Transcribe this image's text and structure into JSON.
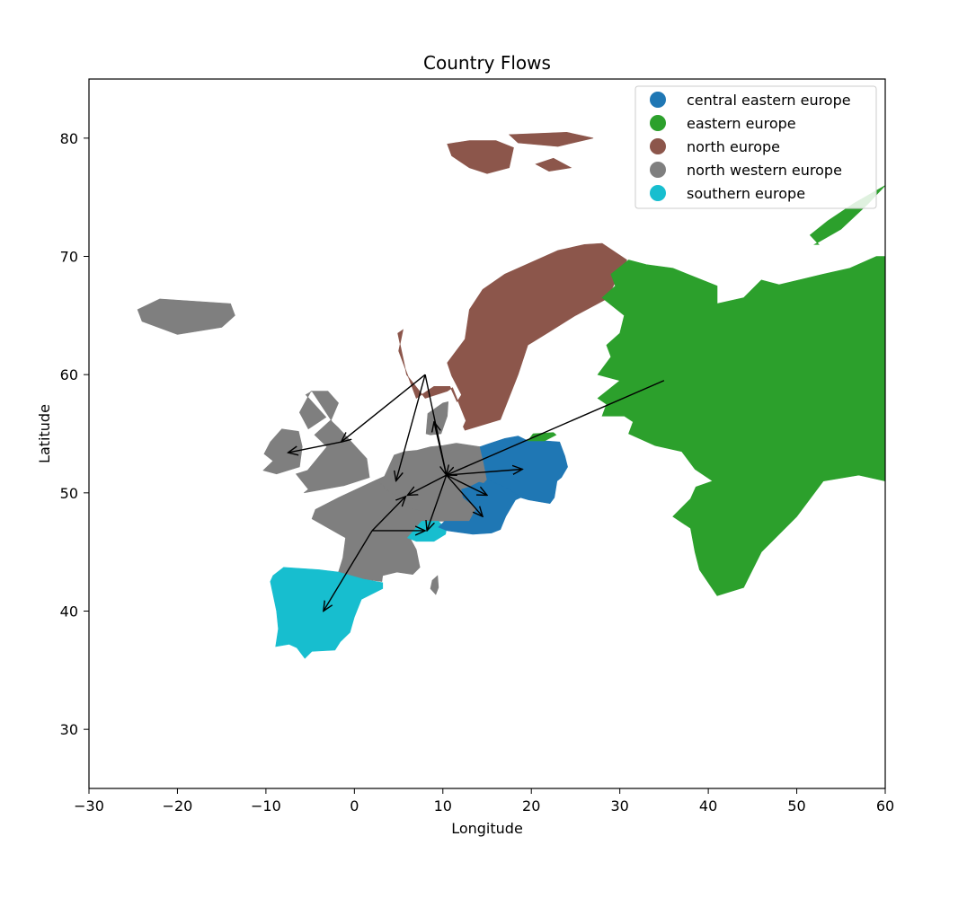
{
  "chart_data": {
    "type": "map",
    "title": "Country Flows",
    "xlabel": "Longitude",
    "ylabel": "Latitude",
    "xlim": [
      -30,
      60
    ],
    "ylim": [
      25,
      85
    ],
    "xticks": [
      -30,
      -20,
      -10,
      0,
      10,
      20,
      30,
      40,
      50,
      60
    ],
    "xtick_labels": [
      "−30",
      "−20",
      "−10",
      "0",
      "10",
      "20",
      "30",
      "40",
      "50",
      "60"
    ],
    "yticks": [
      30,
      40,
      50,
      60,
      70,
      80
    ],
    "ytick_labels": [
      "30",
      "40",
      "50",
      "60",
      "70",
      "80"
    ],
    "grid": false,
    "legend": {
      "placement": "upper right",
      "entries": [
        {
          "label": "central eastern europe",
          "color": "#1f77b4"
        },
        {
          "label": "eastern europe",
          "color": "#2ca02c"
        },
        {
          "label": "north europe",
          "color": "#8c564b"
        },
        {
          "label": "north western europe",
          "color": "#7f7f7f"
        },
        {
          "label": "southern europe",
          "color": "#17becf"
        }
      ]
    },
    "regions": [
      {
        "name": "Iceland",
        "group": "north western europe",
        "color": "#7f7f7f",
        "lon": [
          -24.5,
          -22,
          -18,
          -14,
          -13.5,
          -15,
          -20,
          -24
        ],
        "lat": [
          65.5,
          66.4,
          66.2,
          66.0,
          65.0,
          64.0,
          63.4,
          64.5
        ]
      },
      {
        "name": "Ireland",
        "group": "north western europe",
        "color": "#7f7f7f",
        "lon": [
          -10.3,
          -8.8,
          -6.2,
          -5.9,
          -6.3,
          -8.2,
          -9.5,
          -10.2,
          -9.2
        ],
        "lat": [
          51.9,
          51.6,
          52.2,
          53.9,
          55.2,
          55.4,
          54.3,
          53.3,
          52.7
        ]
      },
      {
        "name": "Great Britain",
        "group": "north western europe",
        "color": "#7f7f7f",
        "lon": [
          -5.7,
          -1.2,
          1.7,
          1.4,
          -1.8,
          -2.5,
          -4.8,
          -5.5,
          -3.2,
          -5.2,
          -6.2,
          -4.9,
          -3.0,
          -1.8,
          -2.6,
          -4.5,
          -3.1,
          -5.3,
          -6.6,
          -5.2
        ],
        "lat": [
          50.0,
          50.6,
          51.3,
          52.9,
          55.5,
          56.0,
          58.6,
          58.3,
          56.4,
          55.4,
          56.8,
          58.6,
          58.6,
          57.6,
          56.2,
          54.9,
          53.9,
          51.9,
          51.6,
          50.3
        ]
      },
      {
        "name": "Benelux-Germany",
        "group": "north western europe",
        "color": "#7f7f7f",
        "lon": [
          2.5,
          3.4,
          4.5,
          5.7,
          7.1,
          8.6,
          10.0,
          11.5,
          14.2,
          15.0,
          14.6,
          14.1,
          13.0,
          12.3,
          13.8,
          13.0,
          10.2,
          7.6,
          6.2,
          5.9,
          4.0
        ],
        "lat": [
          51.1,
          51.4,
          53.2,
          53.5,
          53.6,
          53.9,
          54.0,
          54.2,
          53.9,
          51.1,
          50.8,
          50.9,
          50.5,
          49.6,
          48.7,
          47.6,
          47.6,
          47.6,
          48.7,
          49.5,
          50.0
        ]
      },
      {
        "name": "Denmark",
        "group": "north western europe",
        "color": "#7f7f7f",
        "lon": [
          8.1,
          8.3,
          10.0,
          10.6,
          10.5,
          9.8,
          8.6
        ],
        "lat": [
          55.0,
          56.7,
          57.6,
          57.7,
          56.5,
          55.0,
          54.9
        ]
      },
      {
        "name": "France",
        "group": "north western europe",
        "color": "#7f7f7f",
        "lon": [
          -1.8,
          2.5,
          4.0,
          5.9,
          6.2,
          7.6,
          7.6,
          6.2,
          7.0,
          7.4,
          6.6,
          4.8,
          3.2,
          3.1,
          1.0,
          -1.8,
          -1.3,
          -1.0,
          -4.8,
          -4.4
        ],
        "lat": [
          49.6,
          51.1,
          50.0,
          49.5,
          48.7,
          48.5,
          47.6,
          46.3,
          45.2,
          43.7,
          43.1,
          43.3,
          43.0,
          42.5,
          42.7,
          43.3,
          44.5,
          46.2,
          47.8,
          48.6
        ]
      },
      {
        "name": "Corsica",
        "group": "north western europe",
        "color": "#7f7f7f",
        "lon": [
          9.4,
          9.5,
          9.2,
          8.6,
          8.8
        ],
        "lat": [
          43.0,
          42.0,
          41.4,
          41.9,
          42.6
        ]
      },
      {
        "name": "Switzerland",
        "group": "southern europe",
        "color": "#17becf",
        "lon": [
          6.0,
          7.6,
          9.5,
          10.4,
          10.3,
          9.0,
          7.0,
          6.0
        ],
        "lat": [
          46.2,
          47.6,
          47.6,
          46.9,
          46.5,
          45.9,
          45.9,
          46.2
        ]
      },
      {
        "name": "Iberia",
        "group": "southern europe",
        "color": "#17becf",
        "lon": [
          -9.2,
          -8.0,
          -4.0,
          -1.8,
          1.0,
          3.2,
          3.2,
          0.8,
          0.0,
          -0.5,
          -1.6,
          -2.2,
          -4.8,
          -5.6,
          -6.5,
          -7.4,
          -8.9,
          -8.6,
          -8.8,
          -9.5
        ],
        "lat": [
          43.0,
          43.7,
          43.5,
          43.3,
          42.7,
          42.4,
          41.9,
          41.0,
          39.5,
          38.2,
          37.4,
          36.7,
          36.6,
          36.0,
          36.9,
          37.2,
          37.0,
          38.5,
          40.0,
          42.5
        ]
      },
      {
        "name": "Scandinavia",
        "group": "north europe",
        "color": "#8c564b",
        "lon": [
          5.0,
          5.5,
          4.9,
          5.9,
          8.0,
          10.5,
          11.1,
          12.6,
          12.3,
          12.5,
          16.5,
          18.5,
          19.6,
          22.0,
          25.0,
          28.5,
          30.8,
          28.0,
          26.0,
          23.0,
          17.0,
          14.5,
          13.0,
          12.5,
          10.5,
          11.0,
          12.1,
          11.6,
          10.8,
          9.0,
          7.0
        ],
        "lat": [
          62.0,
          63.8,
          63.5,
          60.0,
          58.0,
          58.6,
          58.9,
          56.1,
          55.6,
          55.3,
          56.2,
          60.0,
          62.5,
          63.6,
          65.0,
          66.4,
          69.7,
          71.1,
          71.0,
          70.5,
          68.5,
          67.2,
          65.5,
          63.0,
          61.0,
          59.9,
          58.3,
          57.7,
          59.0,
          59.0,
          58.0
        ]
      },
      {
        "name": "Svalbard",
        "group": "north europe",
        "color": "#8c564b",
        "lon": [
          10.5,
          13.0,
          16.0,
          18.0,
          17.5,
          15.0,
          13.0,
          11.0
        ],
        "lat": [
          79.5,
          79.8,
          79.8,
          79.2,
          77.5,
          77.0,
          77.5,
          78.5
        ]
      },
      {
        "name": "Nordaustlandet",
        "group": "north europe",
        "color": "#8c564b",
        "lon": [
          17.5,
          24.0,
          27.0,
          23.0,
          18.5
        ],
        "lat": [
          80.3,
          80.5,
          80.0,
          79.3,
          79.6
        ]
      },
      {
        "name": "Edgeoya",
        "group": "north europe",
        "color": "#8c564b",
        "lon": [
          20.5,
          22.5,
          24.5,
          22.0
        ],
        "lat": [
          77.8,
          78.3,
          77.5,
          77.2
        ]
      },
      {
        "name": "Poland",
        "group": "central eastern europe",
        "color": "#1f77b4",
        "lon": [
          14.2,
          15.0,
          17.0,
          18.5,
          19.6,
          21.5,
          23.2,
          23.8,
          24.1,
          23.4,
          22.9,
          22.6,
          22.1,
          19.7,
          18.8,
          17.5,
          16.3,
          15.0,
          14.6
        ],
        "lat": [
          53.9,
          54.1,
          54.6,
          54.8,
          54.4,
          54.4,
          54.3,
          53.1,
          52.2,
          51.3,
          51.0,
          49.6,
          49.1,
          49.4,
          49.6,
          50.3,
          50.7,
          51.1,
          52.6
        ]
      },
      {
        "name": "Czechia-Austria",
        "group": "central eastern europe",
        "color": "#1f77b4",
        "lon": [
          12.1,
          12.3,
          13.8,
          13.0,
          10.2,
          9.5,
          10.5,
          13.4,
          15.5,
          16.5,
          17.1,
          18.2,
          18.8,
          17.5,
          16.3,
          15.0,
          14.6,
          14.1,
          13.0
        ],
        "lat": [
          50.3,
          49.6,
          48.7,
          47.6,
          47.6,
          47.1,
          46.8,
          46.5,
          46.6,
          46.9,
          48.0,
          49.4,
          49.6,
          50.3,
          50.7,
          51.1,
          50.8,
          50.9,
          50.5
        ]
      },
      {
        "name": "Kaliningrad",
        "group": "eastern europe",
        "color": "#2ca02c",
        "lon": [
          19.6,
          21.5,
          22.8,
          22.5,
          20.2
        ],
        "lat": [
          54.4,
          54.4,
          54.9,
          55.1,
          55.0
        ]
      },
      {
        "name": "Russia",
        "group": "eastern europe",
        "color": "#2ca02c",
        "lon": [
          60,
          60,
          57,
          53,
          50,
          46,
          44,
          41.0,
          39.0,
          38.5,
          38.0,
          36.0,
          38.0,
          38.6,
          40.5,
          38.5,
          37.0,
          34.0,
          31.0,
          31.5,
          30.5,
          28.0,
          28.5,
          27.5,
          30.0,
          27.5,
          29.0,
          28.5,
          30.0,
          30.5,
          28.0,
          29.5,
          29.0,
          31.0,
          33.0,
          36.0,
          41.0,
          41.0,
          44.0,
          46.0,
          48.0,
          53.0,
          56.0,
          59.0,
          60
        ],
        "lat": [
          69.0,
          51.0,
          51.5,
          51.0,
          48.0,
          45.0,
          42.0,
          41.3,
          43.5,
          45.0,
          47.0,
          48.0,
          49.5,
          50.5,
          51.0,
          52.0,
          53.5,
          54.0,
          55.0,
          56.0,
          56.5,
          56.5,
          57.5,
          58.0,
          59.5,
          60.0,
          61.5,
          62.5,
          63.5,
          65.0,
          66.5,
          67.5,
          68.5,
          69.7,
          69.3,
          69.0,
          67.5,
          66.0,
          66.5,
          68.0,
          67.6,
          68.5,
          69.0,
          70.0,
          70.0
        ]
      },
      {
        "name": "Novaya Zemlya",
        "group": "eastern europe",
        "color": "#2ca02c",
        "lon": [
          52.0,
          55.0,
          58.0,
          60.0,
          56.5,
          53.5,
          51.5,
          52.5
        ],
        "lat": [
          71.0,
          72.3,
          74.4,
          76.0,
          74.5,
          73.0,
          71.8,
          71.0
        ]
      }
    ],
    "flows": [
      {
        "from": [
          8.0,
          60.0
        ],
        "to": [
          -1.5,
          54.3
        ]
      },
      {
        "from": [
          8.0,
          60.0
        ],
        "to": [
          4.7,
          51.0
        ]
      },
      {
        "from": [
          8.0,
          60.0
        ],
        "to": [
          10.4,
          51.5
        ]
      },
      {
        "from": [
          -1.5,
          54.3
        ],
        "to": [
          -7.5,
          53.4
        ]
      },
      {
        "from": [
          10.4,
          51.5
        ],
        "to": [
          9.0,
          56.0
        ]
      },
      {
        "from": [
          10.4,
          51.5
        ],
        "to": [
          6.0,
          49.8
        ]
      },
      {
        "from": [
          10.4,
          51.5
        ],
        "to": [
          19.0,
          52.0
        ]
      },
      {
        "from": [
          10.4,
          51.5
        ],
        "to": [
          15.0,
          49.8
        ]
      },
      {
        "from": [
          10.4,
          51.5
        ],
        "to": [
          14.5,
          48.0
        ]
      },
      {
        "from": [
          10.4,
          51.5
        ],
        "to": [
          8.2,
          46.8
        ]
      },
      {
        "from": [
          2.0,
          46.8
        ],
        "to": [
          5.8,
          49.7
        ]
      },
      {
        "from": [
          2.0,
          46.8
        ],
        "to": [
          8.0,
          46.8
        ]
      },
      {
        "from": [
          2.0,
          46.8
        ],
        "to": [
          -3.5,
          40.0
        ]
      },
      {
        "from": [
          35.0,
          59.5
        ],
        "to": [
          10.4,
          51.5
        ]
      }
    ]
  }
}
